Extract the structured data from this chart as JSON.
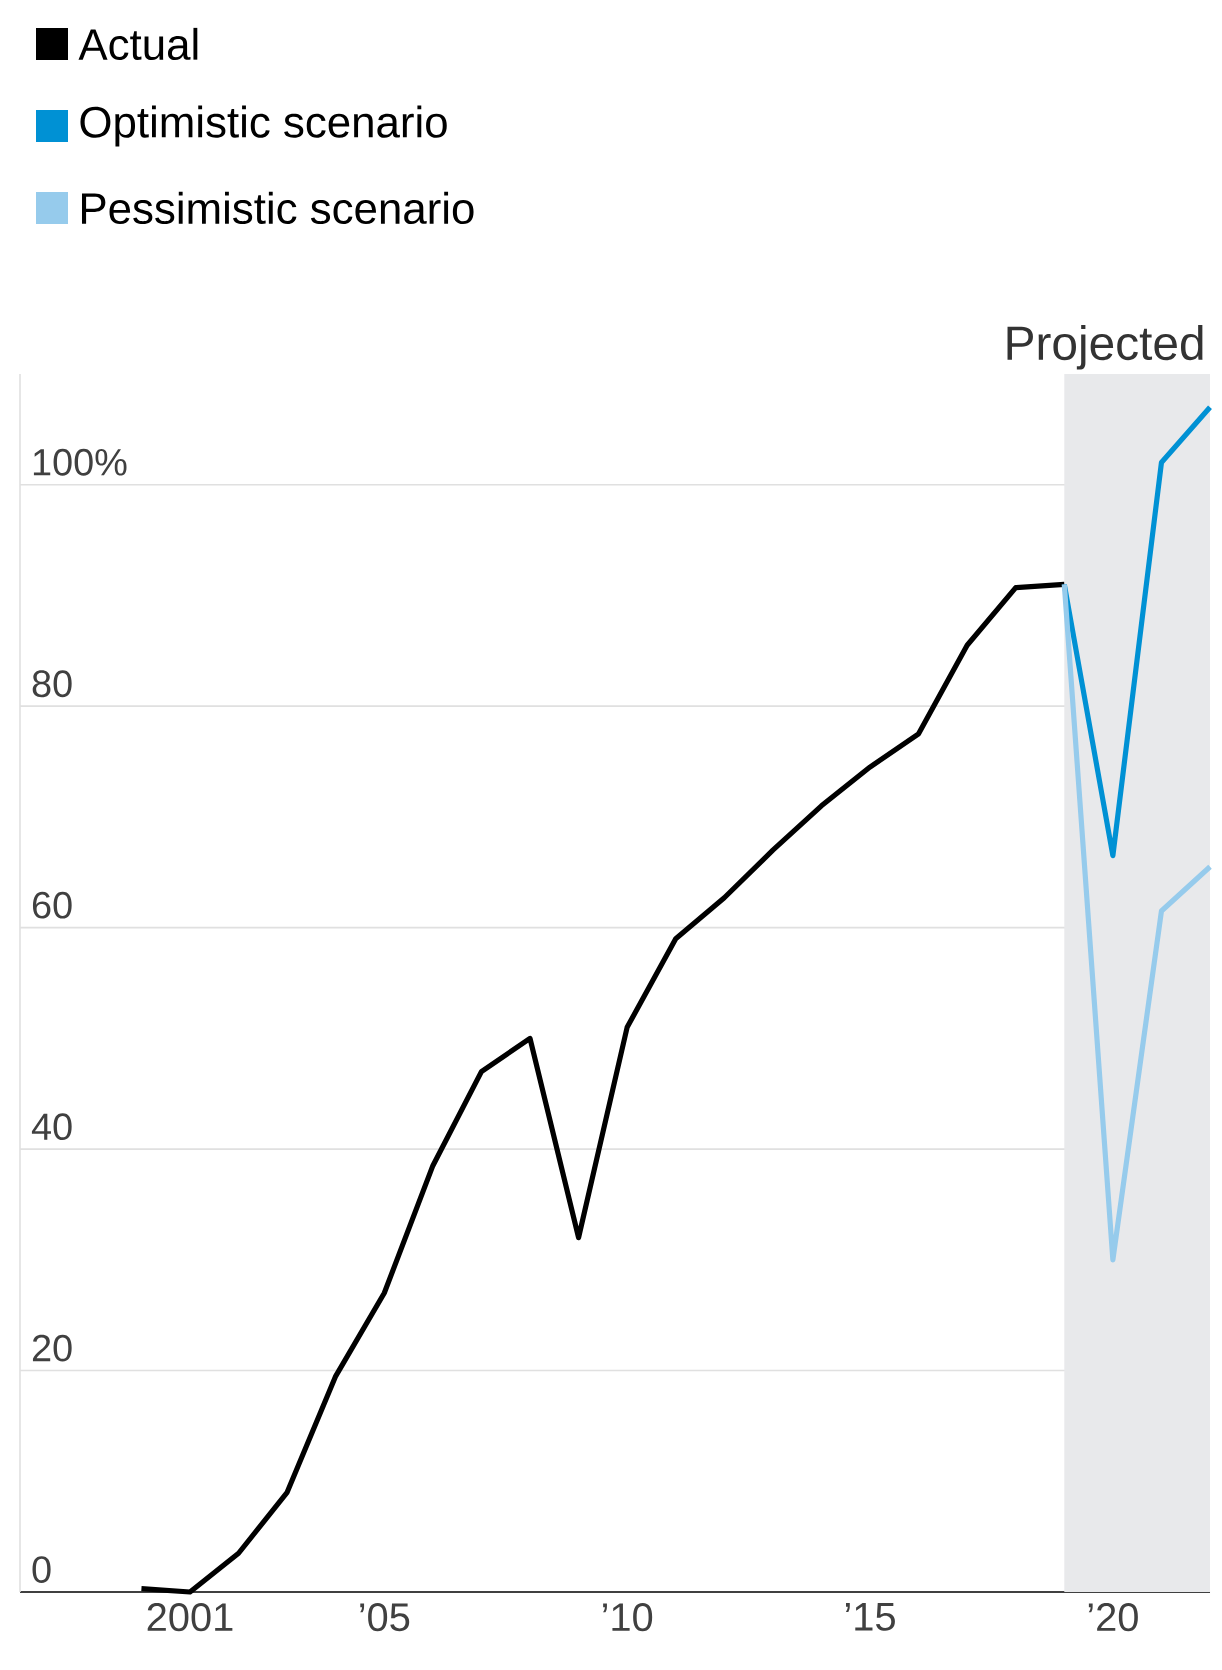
{
  "chart_data": {
    "type": "line",
    "series": [
      {
        "name": "Actual",
        "color": "#000000",
        "x": [
          2000,
          2001,
          2002,
          2003,
          2004,
          2005,
          2006,
          2007,
          2008,
          2009,
          2010,
          2011,
          2012,
          2013,
          2014,
          2015,
          2016,
          2017,
          2018,
          2019
        ],
        "values": [
          0.3,
          0,
          3.5,
          9,
          19.5,
          27,
          38.5,
          47,
          50,
          32,
          51,
          59,
          62.7,
          67,
          71,
          74.5,
          77.5,
          85.5,
          90.7,
          91
        ]
      },
      {
        "name": "Optimistic scenario",
        "color": "#0091d4",
        "x": [
          2019,
          2020,
          2021,
          2022
        ],
        "values": [
          91,
          66.5,
          102,
          107
        ]
      },
      {
        "name": "Pessimistic scenario",
        "color": "#96cbec",
        "x": [
          2019,
          2020,
          2021,
          2022
        ],
        "values": [
          91,
          30,
          61.5,
          65.5
        ]
      }
    ],
    "xlim": [
      1997.5,
      2022
    ],
    "xticks": [
      {
        "value": 2001,
        "label": "2001"
      },
      {
        "value": 2005,
        "label": "’05"
      },
      {
        "value": 2010,
        "label": "’10"
      },
      {
        "value": 2015,
        "label": "’15"
      },
      {
        "value": 2020,
        "label": "’20"
      }
    ],
    "ylim": [
      0,
      110
    ],
    "yticks": [
      0,
      20,
      40,
      60,
      80,
      {
        "value": 100,
        "label": "100%"
      }
    ],
    "grid": "y",
    "legend": "top left",
    "bands": [
      {
        "axis": "x",
        "from": 2019,
        "to": 2022,
        "label": "Projected",
        "color": "#e8e9eb"
      }
    ]
  }
}
